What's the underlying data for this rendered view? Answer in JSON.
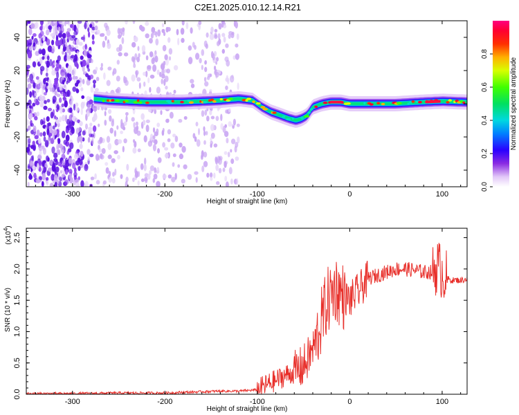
{
  "title": "C2E1.2025.010.12.14.R21",
  "chart_data": [
    {
      "type": "heatmap",
      "xlabel": "Height of straight line (km)",
      "ylabel": "Frequency (Hz)",
      "xlim": [
        -350,
        127
      ],
      "ylim": [
        -50,
        50
      ],
      "xticks": [
        -300,
        -200,
        -100,
        0,
        100
      ],
      "yticks": [
        -40,
        -20,
        0,
        20,
        40
      ],
      "colorbar": {
        "label": "Normalized spectral amplitude",
        "range": [
          0,
          1
        ],
        "ticks": [
          "0.0",
          "0.2",
          "0.4",
          "0.6",
          "0.8"
        ]
      },
      "ridge": {
        "x": [
          -277,
          -260,
          -240,
          -220,
          -200,
          -180,
          -160,
          -140,
          -120,
          -105,
          -95,
          -85,
          -75,
          -65,
          -58,
          -52,
          -46,
          -40,
          -30,
          -20,
          -10,
          0,
          20,
          50,
          80,
          100,
          127
        ],
        "y": [
          3,
          2,
          1.5,
          1,
          1,
          1,
          1.5,
          2,
          3,
          2,
          -2,
          -5,
          -7,
          -9,
          -10,
          -9,
          -7,
          -2,
          0,
          1,
          1,
          0,
          0,
          0,
          1,
          1.5,
          1
        ]
      }
    },
    {
      "type": "line",
      "xlabel": "Height of straight line (km)",
      "ylabel": "SNR (10 * v/v)",
      "yscale_label": "(x10",
      "yscale_exp": "4",
      "ylabel_multiplier": 10000,
      "xlim": [
        -350,
        127
      ],
      "ylim": [
        0,
        2.65
      ],
      "xticks": [
        -300,
        -200,
        -100,
        0,
        100
      ],
      "yticks": [
        "0.0",
        "0.5",
        "1.0",
        "1.5",
        "2.0",
        "2.5"
      ],
      "series": [
        {
          "color": "#e8302b",
          "x": [
            -350,
            -300,
            -250,
            -200,
            -160,
            -140,
            -120,
            -100,
            -90,
            -80,
            -70,
            -60,
            -50,
            -40,
            -30,
            -25,
            -20,
            -15,
            -10,
            0,
            10,
            20,
            30,
            40,
            50,
            60,
            70,
            80,
            90,
            95,
            100,
            105,
            110,
            120,
            127
          ],
          "y": [
            0.01,
            0.01,
            0.02,
            0.02,
            0.04,
            0.05,
            0.05,
            0.07,
            0.15,
            0.22,
            0.3,
            0.35,
            0.45,
            0.7,
            1.2,
            1.45,
            1.6,
            1.7,
            1.6,
            1.5,
            1.65,
            1.85,
            1.9,
            1.95,
            2.0,
            2.0,
            1.98,
            1.95,
            1.95,
            2.05,
            1.95,
            1.85,
            1.82,
            1.82,
            1.84
          ]
        }
      ]
    }
  ]
}
